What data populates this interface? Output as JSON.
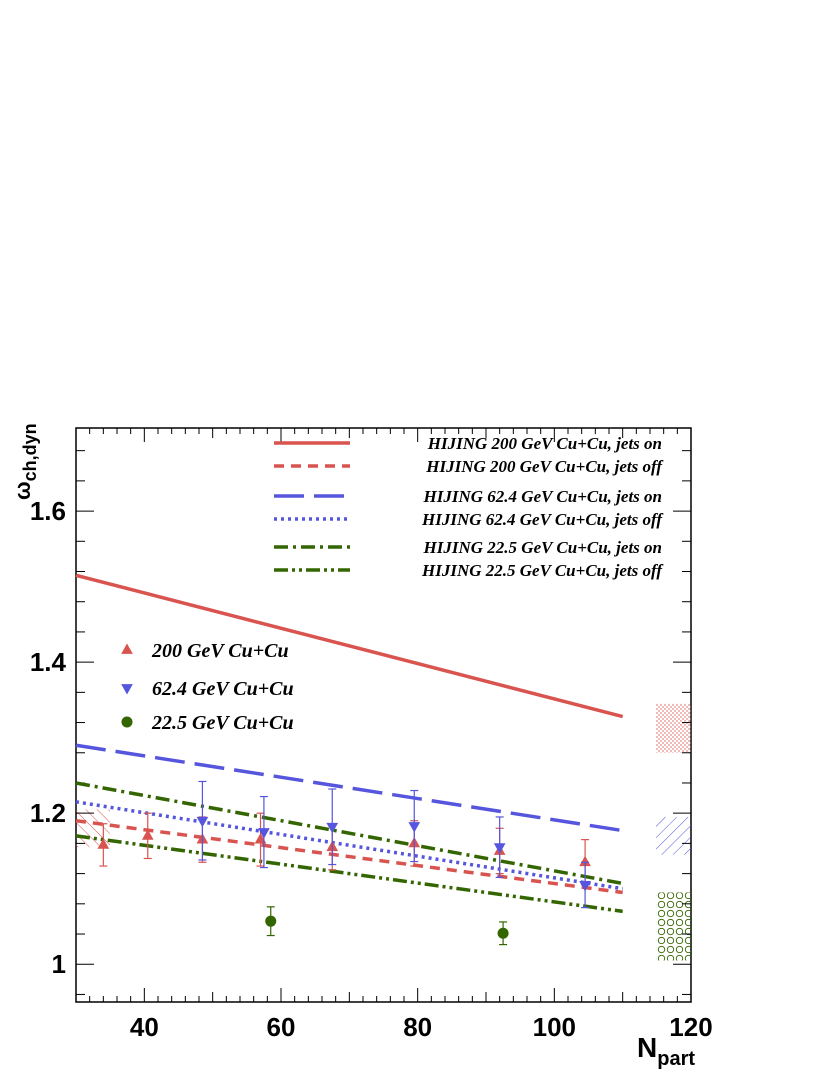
{
  "chart_data": {
    "type": "scatter",
    "xlabel": "N",
    "xlabel_sub": "part",
    "ylabel": "ω",
    "ylabel_sub": "ch,dyn",
    "xlim": [
      30,
      120
    ],
    "ylim": [
      0.95,
      1.71
    ],
    "x_ticks": [
      40,
      60,
      80,
      100,
      120
    ],
    "y_ticks": [
      1,
      1.2,
      1.4,
      1.6
    ],
    "x_tick_labels": [
      "40",
      "60",
      "80",
      "100",
      "120"
    ],
    "y_tick_labels": [
      "1",
      "1.2",
      "1.4",
      "1.6"
    ],
    "grid": false,
    "colors": {
      "c200": "#d9534f",
      "c62": "#5555dd",
      "c22": "#336600"
    },
    "lines": [
      {
        "name": "HIJING 200 GeV Cu+Cu, jets on",
        "color": "#d9534f",
        "style": "solid",
        "x": [
          30,
          110
        ],
        "y": [
          1.515,
          1.328
        ]
      },
      {
        "name": "HIJING 200 GeV Cu+Cu, jets off",
        "color": "#d9534f",
        "style": "dashed",
        "x": [
          30,
          110
        ],
        "y": [
          1.19,
          1.095
        ]
      },
      {
        "name": "HIJING 62.4 GeV Cu+Cu, jets on",
        "color": "#5555dd",
        "style": "longdash",
        "x": [
          30,
          110
        ],
        "y": [
          1.29,
          1.177
        ]
      },
      {
        "name": "HIJING 62.4 GeV Cu+Cu, jets off",
        "color": "#5555dd",
        "style": "dotted",
        "x": [
          30,
          110
        ],
        "y": [
          1.215,
          1.1
        ]
      },
      {
        "name": "HIJING 22.5 GeV Cu+Cu, jets on",
        "color": "#336600",
        "style": "dashdot",
        "x": [
          30,
          110
        ],
        "y": [
          1.24,
          1.107
        ]
      },
      {
        "name": "HIJING 22.5 GeV Cu+Cu, jets off",
        "color": "#336600",
        "style": "dashdotdot",
        "x": [
          30,
          110
        ],
        "y": [
          1.17,
          1.07
        ]
      }
    ],
    "series": [
      {
        "name": "200 GeV Cu+Cu",
        "marker": "triangle-up",
        "color": "#d9534f",
        "x": [
          34,
          40.5,
          48.5,
          57,
          67.5,
          79.5,
          92,
          104.5
        ],
        "y": [
          1.158,
          1.17,
          1.165,
          1.165,
          1.155,
          1.16,
          1.15,
          1.135
        ],
        "err": [
          0.028,
          0.03,
          0.03,
          0.035,
          0.03,
          0.03,
          0.03,
          0.03
        ]
      },
      {
        "name": "62.4 GeV Cu+Cu",
        "marker": "triangle-down",
        "color": "#5555dd",
        "x": [
          48.5,
          57.5,
          67.5,
          79.5,
          92,
          104.5
        ],
        "y": [
          1.19,
          1.175,
          1.182,
          1.183,
          1.155,
          1.105
        ],
        "err": [
          0.052,
          0.047,
          0.05,
          0.047,
          0.04,
          0.03
        ]
      },
      {
        "name": "22.5 GeV Cu+Cu",
        "marker": "circle",
        "color": "#336600",
        "x": [
          58.5,
          92.5
        ],
        "y": [
          1.057,
          1.041
        ],
        "err": [
          0.019,
          0.015
        ]
      }
    ],
    "sys_bands": [
      {
        "color": "#d9534f",
        "pattern": "dots",
        "y": [
          1.28,
          1.345
        ]
      },
      {
        "color": "#5555dd",
        "pattern": "hatch",
        "y": [
          1.145,
          1.195
        ]
      },
      {
        "color": "#336600",
        "pattern": "circles",
        "y": [
          1.005,
          1.095
        ]
      },
      {
        "color": "#d9534f",
        "pattern": "hatch-left",
        "y": [
          1.155,
          1.205
        ]
      }
    ]
  }
}
